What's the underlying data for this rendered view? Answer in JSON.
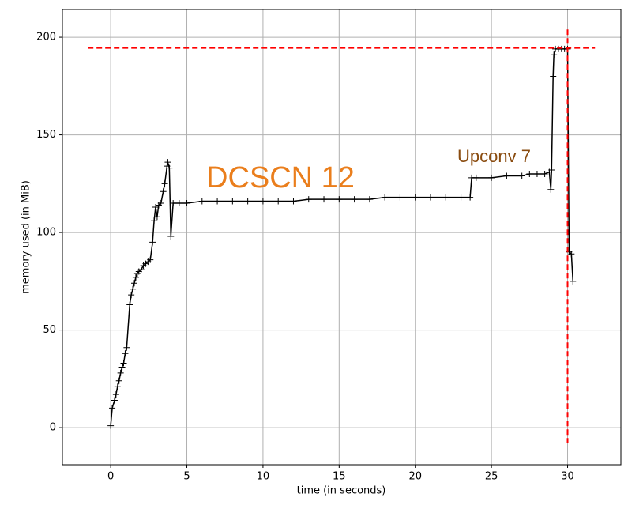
{
  "chart_data": {
    "type": "line",
    "xlabel": "time (in seconds)",
    "ylabel": "memory used (in MiB)",
    "color": "#000000",
    "x": [
      0,
      0.1,
      0.25,
      0.35,
      0.45,
      0.55,
      0.65,
      0.75,
      0.85,
      0.95,
      1.05,
      1.25,
      1.35,
      1.45,
      1.55,
      1.65,
      1.75,
      1.85,
      2.0,
      2.15,
      2.3,
      2.45,
      2.6,
      2.75,
      2.85,
      2.95,
      3.05,
      3.15,
      3.3,
      3.45,
      3.55,
      3.7,
      3.75,
      3.85,
      3.95,
      4.1,
      4.5,
      5,
      6,
      7,
      8,
      9,
      10,
      11,
      12,
      13,
      14,
      15,
      16,
      17,
      18,
      19,
      20,
      21,
      22,
      23,
      23.6,
      23.7,
      24,
      25,
      26,
      27,
      27.5,
      28,
      28.5,
      28.8,
      28.9,
      28.95,
      29.05,
      29.1,
      29.2,
      29.4,
      29.6,
      29.8,
      30.0,
      30.1,
      30.25,
      30.35
    ],
    "values": [
      1,
      10,
      14,
      17,
      21,
      24,
      28,
      31,
      33,
      38,
      41,
      63,
      68,
      71,
      74,
      77,
      79,
      80,
      81,
      83,
      84,
      85,
      86,
      95,
      106,
      113,
      108,
      114,
      115,
      121,
      125,
      134,
      136,
      133,
      98,
      115,
      115,
      115,
      116,
      116,
      116,
      116,
      116,
      116,
      116,
      117,
      117,
      117,
      117,
      117,
      118,
      118,
      118,
      118,
      118,
      118,
      118,
      128,
      128,
      128,
      129,
      129,
      130,
      130,
      130,
      131,
      122,
      132,
      180,
      191,
      194,
      194,
      194,
      194,
      194,
      90,
      89,
      75
    ],
    "xlim": [
      -3.17,
      33.5
    ],
    "ylim": [
      -19,
      214.2
    ],
    "xticks": [
      0,
      5,
      10,
      15,
      20,
      25,
      30
    ],
    "yticks": [
      0,
      50,
      100,
      150,
      200
    ],
    "grid": true,
    "hline": {
      "y": 194.5,
      "color": "#ff0000"
    },
    "vline": {
      "x": 30,
      "color": "#ff0000"
    },
    "annotations": [
      {
        "text": "DCSCN 12",
        "color": "#ea7e1c"
      },
      {
        "text": "Upconv 7",
        "color": "#8a4c10"
      }
    ]
  }
}
